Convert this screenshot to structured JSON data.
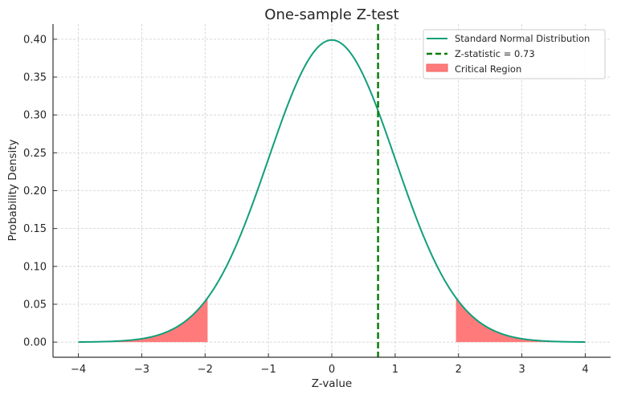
{
  "chart_data": {
    "type": "line",
    "title": "One-sample Z-test",
    "xlabel": "Z-value",
    "ylabel": "Probability Density",
    "xlim": [
      -4.4,
      4.4
    ],
    "ylim": [
      -0.02,
      0.42
    ],
    "xticks": [
      -4,
      -3,
      -2,
      -1,
      0,
      1,
      2,
      3,
      4
    ],
    "xtick_labels": [
      "−4",
      "−3",
      "−2",
      "−1",
      "0",
      "1",
      "2",
      "3",
      "4"
    ],
    "yticks": [
      0,
      0.05,
      0.1,
      0.15,
      0.2,
      0.25,
      0.3,
      0.35,
      0.4
    ],
    "ytick_labels": [
      "0.00",
      "0.05",
      "0.10",
      "0.15",
      "0.20",
      "0.25",
      "0.30",
      "0.35",
      "0.40"
    ],
    "grid": true,
    "legend_position": "top-right",
    "series": [
      {
        "name": "Standard Normal Distribution",
        "kind": "curve",
        "function": "standard normal pdf",
        "x_range": [
          -4,
          4
        ],
        "color": "#129e7a"
      },
      {
        "name": "Z-statistic = 0.73",
        "kind": "vertical-dashed-line",
        "x": 0.73,
        "color": "#0a7d0a"
      },
      {
        "name": "Critical Region",
        "kind": "shaded-area",
        "ranges": [
          [
            -4,
            -1.96
          ],
          [
            1.96,
            4
          ]
        ],
        "color": "#ff7b7b"
      }
    ]
  }
}
